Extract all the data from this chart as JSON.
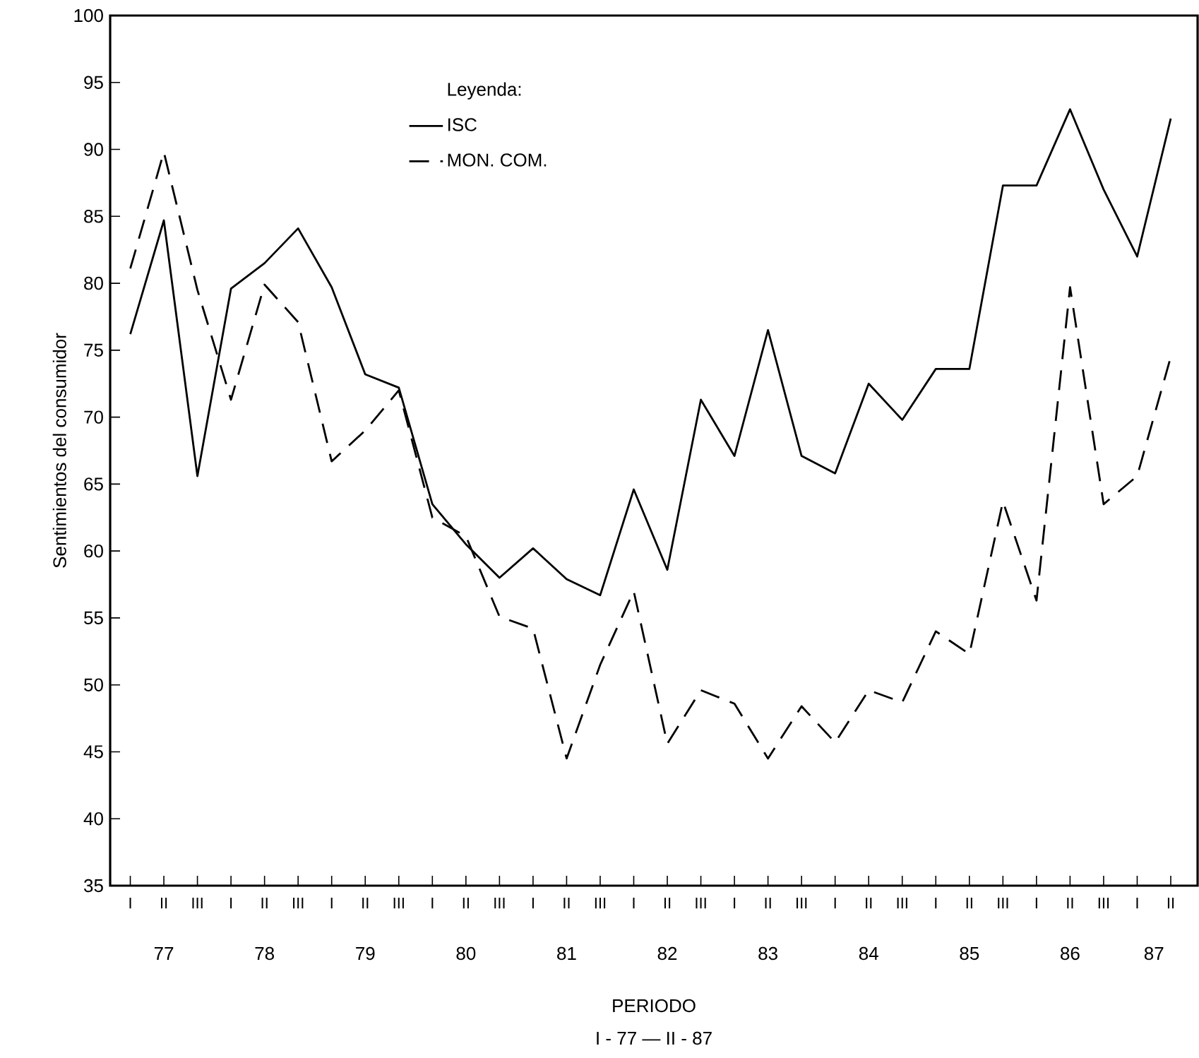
{
  "chart_data": {
    "type": "line",
    "ylabel": "Sentimientos del consumidor",
    "xlabel": "PERIODO",
    "legend_title": "Leyenda:",
    "categories": [
      "I",
      "II",
      "III",
      "I",
      "II",
      "III",
      "I",
      "II",
      "III",
      "I",
      "II",
      "III",
      "I",
      "II",
      "III",
      "I",
      "II",
      "III",
      "I",
      "II",
      "III",
      "I",
      "II",
      "III",
      "I",
      "II",
      "III",
      "I",
      "II",
      "III",
      "I",
      "II"
    ],
    "series": [
      {
        "name": "ISC",
        "color": "#000000",
        "line_style": "solid",
        "values": [
          76.2,
          84.7,
          65.6,
          79.6,
          81.5,
          84.1,
          79.7,
          73.2,
          72.2,
          63.5,
          60.5,
          58.0,
          60.2,
          57.9,
          56.7,
          64.6,
          58.6,
          71.3,
          67.1,
          76.5,
          67.1,
          65.8,
          72.5,
          69.8,
          73.6,
          73.6,
          87.3,
          87.3,
          93.0,
          87.0,
          82.0,
          92.3
        ]
      },
      {
        "name": "MON. COM.",
        "color": "#000000",
        "line_style": "dashed",
        "values": [
          81.1,
          89.8,
          79.5,
          71.3,
          79.9,
          77.1,
          66.7,
          69.0,
          72.0,
          62.5,
          61.1,
          55.1,
          54.2,
          44.5,
          51.5,
          57.0,
          45.6,
          49.6,
          48.6,
          44.5,
          48.4,
          45.7,
          49.6,
          48.7,
          54.0,
          52.3,
          63.7,
          56.3,
          79.7,
          63.5,
          65.6,
          74.5
        ]
      }
    ],
    "ylim": [
      35,
      100
    ],
    "yticks": [
      35,
      40,
      45,
      50,
      55,
      60,
      65,
      70,
      75,
      80,
      85,
      90,
      95,
      100
    ],
    "legend": "top",
    "annotations": [
      "77",
      "78",
      "79",
      "80",
      "81",
      "82",
      "83",
      "84",
      "85",
      "86",
      "87",
      "I - 77 — II - 87"
    ]
  }
}
